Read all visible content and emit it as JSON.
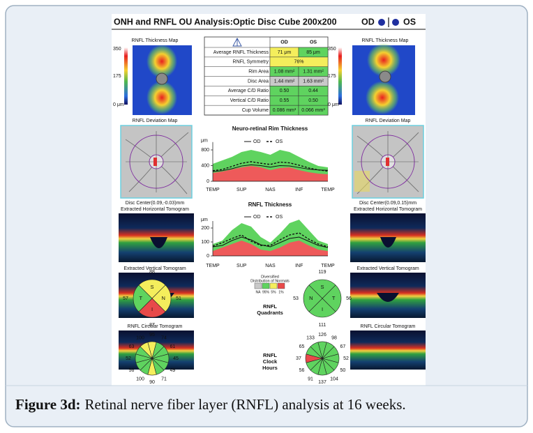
{
  "header": {
    "title": "ONH and RNFL OU Analysis:Optic Disc Cube 200x200",
    "od": "OD",
    "os": "OS"
  },
  "od_panel": {
    "map_title": "RNFL Thickness Map",
    "scale": [
      "350",
      "175",
      "0 μm"
    ],
    "deviation_title": "RNFL Deviation Map",
    "disc_center": "Disc Center(0.09,-0.03)mm",
    "horizontal_title": "Extracted Horizontal Tomogram",
    "vertical_title": "Extracted Vertical Tomogram",
    "circular_title": "RNFL Circular Tomogram"
  },
  "os_panel": {
    "map_title": "RNFL Thickness Map",
    "scale": [
      "350",
      "175",
      "0 μm"
    ],
    "deviation_title": "RNFL Deviation Map",
    "disc_center": "Disc Center(0.09,0.15)mm",
    "horizontal_title": "Extracted Horizontal Tomogram",
    "vertical_title": "Extracted Vertical Tomogram",
    "circular_title": "RNFL Circular Tomogram"
  },
  "table": {
    "columns": [
      "OD",
      "OS"
    ],
    "rows": [
      {
        "label": "Average RNFL Thickness",
        "od": "71 μm",
        "os": "85 μm",
        "od_color": "#f4ee5c",
        "os_color": "#5fd35f"
      },
      {
        "label": "RNFL Symmetry",
        "value": "76%",
        "color": "#f4ee5c"
      },
      {
        "label": "Rim Area",
        "od": "1.08 mm²",
        "os": "1.31 mm²",
        "od_color": "#5fd35f",
        "os_color": "#5fd35f"
      },
      {
        "label": "Disc Area",
        "od": "1.44 mm²",
        "os": "1.63 mm²",
        "od_color": "#c9c9c9",
        "os_color": "#c9c9c9"
      },
      {
        "label": "Average C/D Ratio",
        "od": "0.50",
        "os": "0.44",
        "od_color": "#5fd35f",
        "os_color": "#5fd35f"
      },
      {
        "label": "Vertical C/D Ratio",
        "od": "0.55",
        "os": "0.50",
        "od_color": "#5fd35f",
        "os_color": "#5fd35f"
      },
      {
        "label": "Cup Volume",
        "od": "0.086 mm³",
        "os": "0.066 mm³",
        "od_color": "#5fd35f",
        "os_color": "#5fd35f"
      }
    ]
  },
  "rim_chart": {
    "type": "line",
    "title": "Neuro-retinal Rim Thickness",
    "ylabel": "μm",
    "categories": [
      "TEMP",
      "SUP",
      "NAS",
      "INF",
      "TEMP"
    ],
    "ylim": [
      0,
      1000
    ],
    "yticks": [
      0,
      400,
      800
    ],
    "series": [
      {
        "name": "OD",
        "color": "#111111",
        "dash": false,
        "values": [
          250,
          270,
          320,
          390,
          420,
          400,
          360,
          400,
          390,
          350,
          310,
          290,
          280
        ]
      },
      {
        "name": "OS",
        "color": "#111111",
        "dash": true,
        "values": [
          270,
          300,
          380,
          460,
          500,
          460,
          430,
          490,
          470,
          410,
          340,
          290,
          260
        ]
      }
    ]
  },
  "rnfl_chart": {
    "type": "line",
    "title": "RNFL Thickness",
    "ylabel": "μm",
    "categories": [
      "TEMP",
      "SUP",
      "NAS",
      "INF",
      "TEMP"
    ],
    "ylim": [
      0,
      250
    ],
    "yticks": [
      0,
      100,
      200
    ],
    "series": [
      {
        "name": "OD",
        "color": "#111111",
        "dash": false,
        "values": [
          65,
          75,
          110,
          135,
          115,
          80,
          65,
          95,
          125,
          135,
          105,
          75,
          60
        ]
      },
      {
        "name": "OS",
        "color": "#111111",
        "dash": true,
        "values": [
          70,
          95,
          125,
          150,
          105,
          75,
          75,
          115,
          150,
          165,
          120,
          85,
          65
        ]
      }
    ]
  },
  "legend": {
    "title": [
      "Diversified",
      "Distribution of Normals"
    ],
    "items": [
      {
        "label": "NA",
        "color": "#c9c9c9"
      },
      {
        "label": "95%",
        "color": "#5fd35f"
      },
      {
        "label": "5%",
        "color": "#f4ee5c"
      },
      {
        "label": "1%",
        "color": "#e84a4a"
      }
    ]
  },
  "quadrants": {
    "title": [
      "RNFL",
      "Quadrants"
    ],
    "od": [
      {
        "label": "S",
        "value": 88,
        "color": "#f4ee5c"
      },
      {
        "label": "N",
        "value": 51,
        "color": "#f4ee5c"
      },
      {
        "label": "I",
        "value": 87,
        "color": "#e84a4a"
      },
      {
        "label": "T",
        "value": 57,
        "color": "#5fd35f"
      }
    ],
    "os": [
      {
        "label": "S",
        "value": 119,
        "color": "#5fd35f"
      },
      {
        "label": "T",
        "value": 56,
        "color": "#5fd35f"
      },
      {
        "label": "I",
        "value": 111,
        "color": "#5fd35f"
      },
      {
        "label": "N",
        "value": 53,
        "color": "#5fd35f"
      }
    ]
  },
  "clock_hours": {
    "title": [
      "RNFL",
      "Clock",
      "Hours"
    ],
    "od": {
      "values": [
        95,
        74,
        61,
        45,
        49,
        71,
        90,
        100,
        56,
        52,
        63,
        100
      ],
      "colors": [
        "#f4ee5c",
        "#5fd35f",
        "#5fd35f",
        "#5fd35f",
        "#5fd35f",
        "#5fd35f",
        "#f4ee5c",
        "#5fd35f",
        "#5fd35f",
        "#5fd35f",
        "#5fd35f",
        "#f4ee5c"
      ]
    },
    "os": {
      "values": [
        126,
        98,
        67,
        52,
        50,
        104,
        137,
        91,
        56,
        37,
        65,
        133
      ],
      "colors": [
        "#5fd35f",
        "#5fd35f",
        "#5fd35f",
        "#5fd35f",
        "#5fd35f",
        "#5fd35f",
        "#5fd35f",
        "#5fd35f",
        "#5fd35f",
        "#e84a4a",
        "#5fd35f",
        "#5fd35f"
      ]
    }
  },
  "caption": {
    "label": "Figure 3d:",
    "text": "Retinal nerve fiber layer (RNFL) analysis at 16 weeks."
  }
}
